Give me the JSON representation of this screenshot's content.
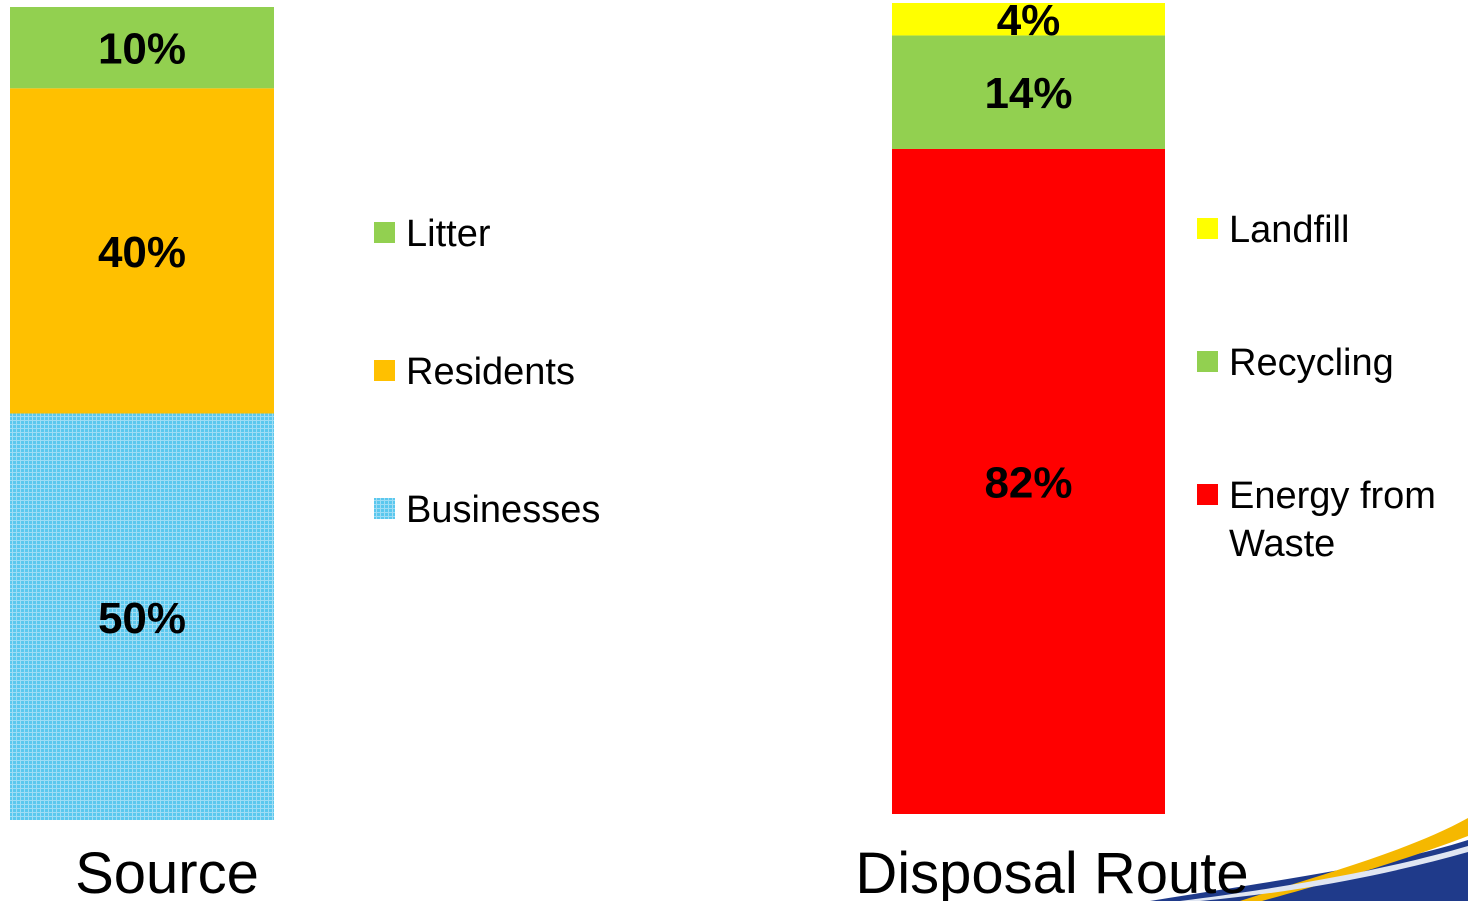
{
  "chart_data": [
    {
      "type": "bar",
      "stacked": true,
      "xlabel": "Source",
      "ylim": [
        0,
        100
      ],
      "segments": [
        {
          "name": "Businesses",
          "value": 50,
          "label": "50%",
          "color": "#5BC8EE",
          "pattern": "fine-grid"
        },
        {
          "name": "Residents",
          "value": 40,
          "label": "40%",
          "color": "#FFC000"
        },
        {
          "name": "Litter",
          "value": 10,
          "label": "10%",
          "color": "#92D050"
        }
      ],
      "legend": {
        "placement": "right",
        "entries": [
          "Litter",
          "Residents",
          "Businesses"
        ]
      }
    },
    {
      "type": "bar",
      "stacked": true,
      "xlabel": "Disposal Route",
      "ylim": [
        0,
        100
      ],
      "segments": [
        {
          "name": "Energy from Waste",
          "value": 82,
          "label": "82%",
          "color": "#FF0000"
        },
        {
          "name": "Recycling",
          "value": 14,
          "label": "14%",
          "color": "#92D050"
        },
        {
          "name": "Landfill",
          "value": 4,
          "label": "4%",
          "color": "#FFFF00"
        }
      ],
      "legend": {
        "placement": "right",
        "entries": [
          "Landfill",
          "Recycling",
          "Energy from Waste"
        ]
      }
    }
  ],
  "colors": {
    "swoosh_blue": "#1F3A8A",
    "swoosh_gold": "#F5B800"
  }
}
